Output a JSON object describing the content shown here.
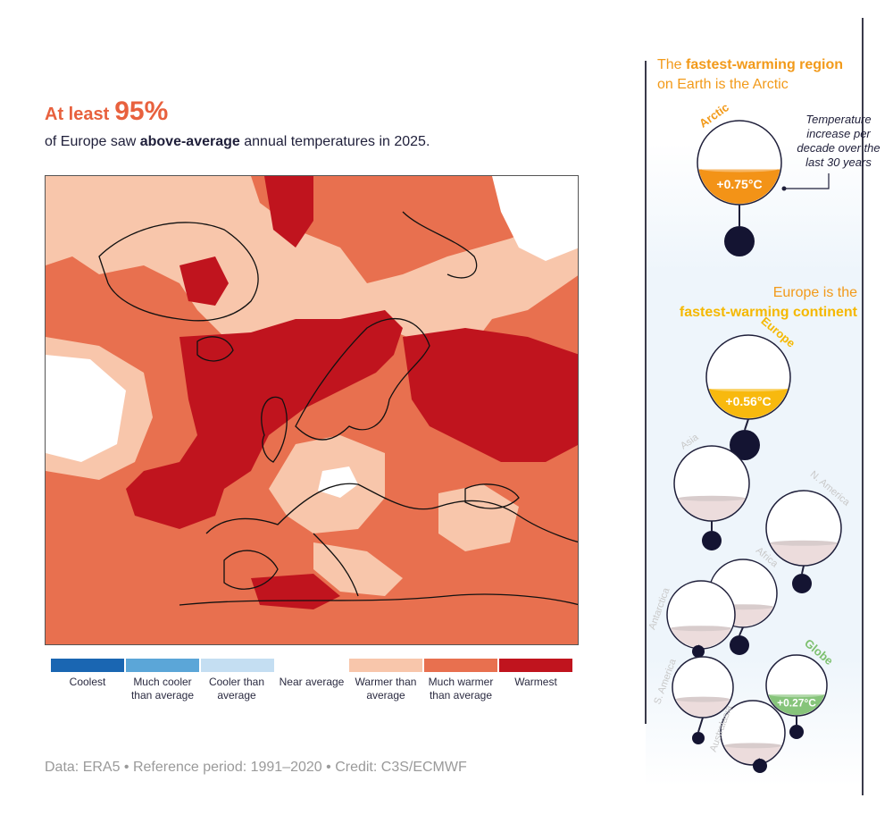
{
  "headline": {
    "lead": "At least",
    "percent": "95%"
  },
  "subline": {
    "prefix": "of Europe saw ",
    "bold": "above-average",
    "suffix": " annual temperatures in 2025."
  },
  "legend": [
    {
      "label": "Coolest",
      "color": "#1a66b2"
    },
    {
      "label": "Much cooler than average",
      "color": "#5ba6d8"
    },
    {
      "label": "Cooler than average",
      "color": "#c4def2"
    },
    {
      "label": "Near average",
      "color": "#ffffff"
    },
    {
      "label": "Warmer than average",
      "color": "#f8c6ab"
    },
    {
      "label": "Much warmer than average",
      "color": "#e8704f"
    },
    {
      "label": "Warmest",
      "color": "#c0141e"
    }
  ],
  "credit": "Data: ERA5 • Reference period: 1991–2020 • Credit: C3S/ECMWF",
  "panel": {
    "arctic_title": {
      "line1_plain": "The ",
      "line1_bold": "fastest-warming region",
      "line2": "on Earth is the Arctic"
    },
    "annotation": "Temperature increase per decade over the last 30 years",
    "europe_title": {
      "line1": "Europe is the",
      "line2": "fastest-warming continent"
    }
  },
  "regions": [
    {
      "name": "Arctic",
      "value": "+0.75°C",
      "level": 0.42,
      "fill": "#f39317",
      "label_color": "#f29a1a"
    },
    {
      "name": "Europe",
      "value": "+0.56°C",
      "level": 0.36,
      "fill": "#f8b90e",
      "label_color": "#f5b800"
    },
    {
      "name": "Asia",
      "value": "",
      "level": 0.3,
      "fill": "#ecdcdc",
      "label_color": "#c8c8c8"
    },
    {
      "name": "N. America",
      "value": "",
      "level": 0.3,
      "fill": "#ecdcdc",
      "label_color": "#c8c8c8"
    },
    {
      "name": "Africa",
      "value": "",
      "level": 0.3,
      "fill": "#ecdcdc",
      "label_color": "#c8c8c8"
    },
    {
      "name": "Antarctica",
      "value": "",
      "level": 0.3,
      "fill": "#ecdcdc",
      "label_color": "#c8c8c8"
    },
    {
      "name": "Globe",
      "value": "+0.27°C",
      "level": 0.35,
      "fill": "#86c47a",
      "label_color": "#7cc06e"
    },
    {
      "name": "S. America",
      "value": "",
      "level": 0.3,
      "fill": "#ecdcdc",
      "label_color": "#c8c8c8"
    },
    {
      "name": "Australasia",
      "value": "",
      "level": 0.3,
      "fill": "#ecdcdc",
      "label_color": "#c8c8c8"
    }
  ]
}
